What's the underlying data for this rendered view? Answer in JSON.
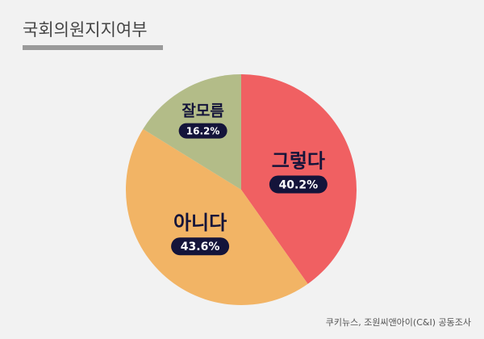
{
  "chart_data": {
    "type": "pie",
    "title": "국회의원지지여부",
    "categories": [
      "그렇다",
      "아니다",
      "잘모름"
    ],
    "values": [
      40.2,
      43.6,
      16.2
    ],
    "value_labels": [
      "40.2%",
      "43.6%",
      "16.2%"
    ],
    "colors": [
      "#f06062",
      "#f2b465",
      "#b3bc88"
    ],
    "source": "쿠키뉴스, 조원씨앤아이(C&I) 공동조사"
  }
}
